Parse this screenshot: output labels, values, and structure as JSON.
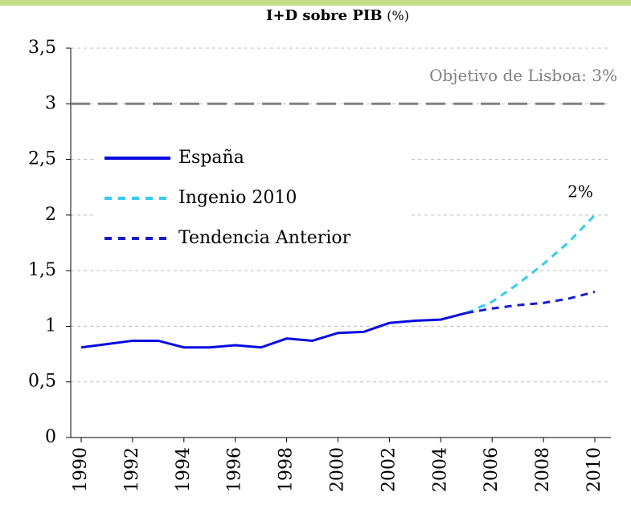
{
  "chart_data": {
    "type": "line",
    "title": "I+D sobre PIB",
    "title_unit": "(%)",
    "x": [
      1990,
      1991,
      1992,
      1993,
      1994,
      1995,
      1996,
      1997,
      1998,
      1999,
      2000,
      2001,
      2002,
      2003,
      2004,
      2005,
      2006,
      2007,
      2008,
      2009,
      2010
    ],
    "xlim": [
      1990,
      2010
    ],
    "xticks": [
      1990,
      1992,
      1994,
      1996,
      1998,
      2000,
      2002,
      2004,
      2006,
      2008,
      2010
    ],
    "ylim": [
      0,
      3.5
    ],
    "yticks": [
      0,
      {
        "value": 0.5,
        "label": "0,5"
      },
      1,
      {
        "value": 1.5,
        "label": "1,5"
      },
      2,
      {
        "value": 2.5,
        "label": "2,5"
      },
      3,
      {
        "value": 3.5,
        "label": "3,5"
      }
    ],
    "grid": true,
    "series": [
      {
        "name": "España",
        "color": "#0a0ae0",
        "dash": false,
        "values": [
          0.81,
          0.84,
          0.87,
          0.87,
          0.81,
          0.81,
          0.83,
          0.81,
          0.89,
          0.87,
          0.94,
          0.95,
          1.03,
          1.05,
          1.06,
          1.12,
          null,
          null,
          null,
          null,
          null
        ]
      },
      {
        "name": "Ingenio 2010",
        "color": "#33ccee",
        "dash": true,
        "values": [
          null,
          null,
          null,
          null,
          null,
          null,
          null,
          null,
          null,
          null,
          null,
          null,
          null,
          null,
          null,
          1.12,
          1.22,
          1.38,
          1.56,
          1.76,
          2.0
        ]
      },
      {
        "name": "Tendencia Anterior",
        "color": "#1a1ad0",
        "dash": true,
        "values": [
          null,
          null,
          null,
          null,
          null,
          null,
          null,
          null,
          null,
          null,
          null,
          null,
          null,
          null,
          null,
          1.12,
          1.16,
          1.19,
          1.21,
          1.25,
          1.31
        ]
      }
    ],
    "reference_lines": [
      {
        "value": 3,
        "label": "Objetivo de Lisboa: 3%",
        "color": "#808080"
      }
    ],
    "annotations": [
      {
        "text": "2%",
        "x": 2010,
        "y": 2
      }
    ]
  }
}
